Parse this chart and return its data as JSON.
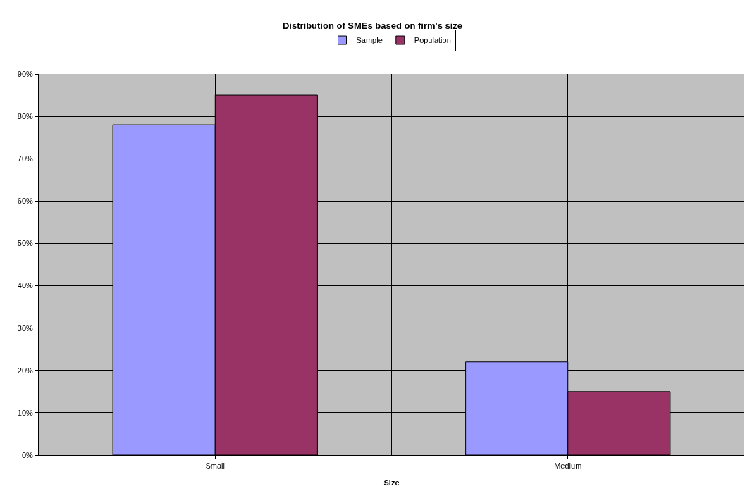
{
  "chart_data": {
    "type": "bar",
    "title": "Distribution of SMEs based on firm's size",
    "xlabel": "Size",
    "categories": [
      "Small",
      "Medium"
    ],
    "series": [
      {
        "name": "Sample",
        "color": "#9999ff",
        "values": [
          78,
          22
        ]
      },
      {
        "name": "Population",
        "color": "#993366",
        "values": [
          85,
          15
        ]
      }
    ],
    "ylim": [
      0,
      90
    ],
    "yticks": [
      {
        "value": 0,
        "label": "0%"
      },
      {
        "value": 10,
        "label": "10%"
      },
      {
        "value": 20,
        "label": "20%"
      },
      {
        "value": 30,
        "label": "30%"
      },
      {
        "value": 40,
        "label": "40%"
      },
      {
        "value": 50,
        "label": "50%"
      },
      {
        "value": 60,
        "label": "60%"
      },
      {
        "value": 70,
        "label": "70%"
      },
      {
        "value": 80,
        "label": "80%"
      },
      {
        "value": 90,
        "label": "90%"
      }
    ],
    "grid": true,
    "legend": "top"
  }
}
